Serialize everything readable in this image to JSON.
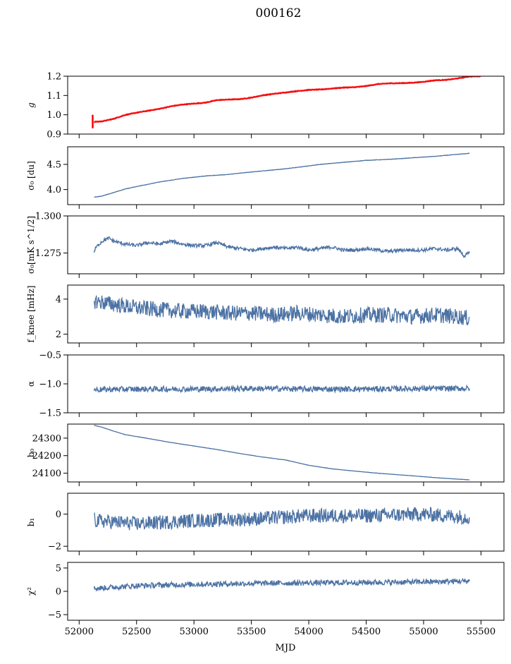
{
  "figure": {
    "title": "000162",
    "xlabel": "MJD"
  },
  "colors": {
    "line": "#4c72a4",
    "fit": "#ff0000",
    "axes": "#000000"
  },
  "chart_data": [
    {
      "type": "line",
      "ylabel": "g",
      "ylabel_italic": true,
      "xlim": [
        51900,
        55700
      ],
      "ylim": [
        0.9,
        1.2
      ],
      "yticks": [
        0.9,
        1.0,
        1.1,
        1.2
      ],
      "ytick_labels": [
        "0.9",
        "1.0",
        "1.1",
        "1.2"
      ],
      "series": [
        {
          "x": [
            52130,
            52200,
            52300,
            52400,
            52500,
            52600,
            52700,
            52800,
            52900,
            53000,
            53100,
            53200,
            53300,
            53400,
            53500,
            53600,
            53700,
            53800,
            53900,
            54000,
            54100,
            54200,
            54300,
            54400,
            54500,
            54600,
            54700,
            54800,
            54900,
            55000,
            55100,
            55200,
            55300,
            55400
          ],
          "y": [
            0.965,
            0.965,
            0.978,
            0.998,
            1.01,
            1.02,
            1.03,
            1.043,
            1.052,
            1.057,
            1.062,
            1.075,
            1.078,
            1.08,
            1.088,
            1.1,
            1.108,
            1.115,
            1.122,
            1.128,
            1.13,
            1.135,
            1.14,
            1.142,
            1.148,
            1.158,
            1.162,
            1.163,
            1.165,
            1.17,
            1.178,
            1.18,
            1.188,
            1.198
          ]
        },
        {
          "x": [
            52130,
            52200,
            52300,
            52400,
            52500,
            52600,
            52700,
            52800,
            52900,
            53000,
            53100,
            53200,
            53300,
            53400,
            53500,
            53600,
            53700,
            53800,
            53900,
            54000,
            54100,
            54200,
            54300,
            54400,
            54500,
            54600,
            54700,
            54800,
            54900,
            55000,
            55100,
            55200,
            55300,
            55400,
            55500
          ],
          "y": [
            0.963,
            0.966,
            0.979,
            0.999,
            1.011,
            1.021,
            1.031,
            1.044,
            1.053,
            1.058,
            1.063,
            1.076,
            1.079,
            1.081,
            1.089,
            1.101,
            1.109,
            1.116,
            1.123,
            1.129,
            1.131,
            1.136,
            1.141,
            1.143,
            1.149,
            1.159,
            1.163,
            1.164,
            1.166,
            1.171,
            1.179,
            1.181,
            1.189,
            1.199,
            1.2
          ],
          "error_at_start": [
            0.93,
            1.0
          ]
        }
      ]
    },
    {
      "type": "line",
      "ylabel": "σ₀ [du]",
      "xlim": [
        51900,
        55700
      ],
      "ylim": [
        3.7,
        4.85
      ],
      "yticks": [
        4.0,
        4.5
      ],
      "ytick_labels": [
        "4.0",
        "4.5"
      ],
      "series": [
        {
          "x": [
            52130,
            52200,
            52300,
            52400,
            52500,
            52700,
            52900,
            53100,
            53300,
            53500,
            53700,
            53900,
            54100,
            54300,
            54500,
            54700,
            54900,
            55100,
            55300,
            55400
          ],
          "y": [
            3.85,
            3.87,
            3.94,
            4.01,
            4.06,
            4.15,
            4.22,
            4.27,
            4.3,
            4.35,
            4.39,
            4.44,
            4.5,
            4.54,
            4.58,
            4.6,
            4.63,
            4.66,
            4.7,
            4.72
          ]
        }
      ]
    },
    {
      "type": "line",
      "ylabel": "σ₀[mK s^1/2]",
      "xlim": [
        51900,
        55700
      ],
      "ylim": [
        1.261,
        1.3
      ],
      "yticks": [
        1.275,
        1.3
      ],
      "ytick_labels": [
        "1.275",
        "1.300"
      ],
      "series": [
        {
          "x": [
            52130,
            52150,
            52200,
            52260,
            52300,
            52400,
            52500,
            52600,
            52700,
            52800,
            52900,
            53000,
            53100,
            53200,
            53300,
            53400,
            53500,
            53600,
            53700,
            53800,
            53900,
            54000,
            54100,
            54200,
            54300,
            54400,
            54500,
            54600,
            54700,
            54800,
            54900,
            55000,
            55100,
            55200,
            55300,
            55350,
            55400
          ],
          "y": [
            1.276,
            1.279,
            1.283,
            1.285,
            1.283,
            1.281,
            1.28,
            1.282,
            1.281,
            1.283,
            1.281,
            1.28,
            1.28,
            1.282,
            1.279,
            1.278,
            1.277,
            1.278,
            1.279,
            1.278,
            1.279,
            1.277,
            1.278,
            1.279,
            1.277,
            1.277,
            1.278,
            1.277,
            1.276,
            1.277,
            1.277,
            1.277,
            1.278,
            1.277,
            1.278,
            1.273,
            1.275
          ]
        }
      ]
    },
    {
      "type": "line",
      "ylabel": "f_knee [mHz]",
      "xlim": [
        51900,
        55700
      ],
      "ylim": [
        1.5,
        4.8
      ],
      "yticks": [
        2,
        4
      ],
      "ytick_labels": [
        "2",
        "4"
      ],
      "series": [
        {
          "x": [
            52130,
            52300,
            52500,
            52700,
            52900,
            53100,
            53300,
            53500,
            53700,
            53900,
            54100,
            54300,
            54500,
            54700,
            54900,
            55100,
            55300,
            55400
          ],
          "y": [
            3.9,
            3.7,
            3.5,
            3.4,
            3.3,
            3.3,
            3.2,
            3.2,
            3.1,
            3.2,
            3.1,
            3.0,
            3.1,
            3.1,
            3.0,
            3.1,
            3.0,
            2.9
          ]
        }
      ]
    },
    {
      "type": "line",
      "ylabel": "α",
      "xlim": [
        51900,
        55700
      ],
      "ylim": [
        -1.5,
        -0.5
      ],
      "yticks": [
        -1.5,
        -1.0,
        -0.5
      ],
      "ytick_labels": [
        "−1.5",
        "−1.0",
        "−0.5"
      ],
      "series": [
        {
          "x": [
            52130,
            52500,
            53000,
            53500,
            54000,
            54500,
            55000,
            55400
          ],
          "y": [
            -1.1,
            -1.09,
            -1.09,
            -1.08,
            -1.09,
            -1.09,
            -1.08,
            -1.08
          ]
        }
      ]
    },
    {
      "type": "line",
      "ylabel": "b₀",
      "xlim": [
        51900,
        55700
      ],
      "ylim": [
        24050,
        24380
      ],
      "yticks": [
        24100,
        24200,
        24300
      ],
      "ytick_labels": [
        "24100",
        "24200",
        "24300"
      ],
      "series": [
        {
          "x": [
            52130,
            52200,
            52300,
            52400,
            52600,
            52800,
            53000,
            53200,
            53400,
            53600,
            53800,
            54000,
            54200,
            54400,
            54600,
            54800,
            55000,
            55200,
            55400
          ],
          "y": [
            24373,
            24362,
            24340,
            24320,
            24298,
            24275,
            24255,
            24235,
            24212,
            24192,
            24175,
            24145,
            24125,
            24112,
            24100,
            24090,
            24080,
            24070,
            24062
          ]
        }
      ]
    },
    {
      "type": "line",
      "ylabel": "b₁",
      "xlim": [
        51900,
        55700
      ],
      "ylim": [
        -2.3,
        1.3
      ],
      "yticks": [
        -2,
        0
      ],
      "ytick_labels": [
        "−2",
        "0"
      ],
      "series": [
        {
          "x": [
            52130,
            52500,
            53000,
            53500,
            54000,
            54500,
            55000,
            55400
          ],
          "y": [
            -0.4,
            -0.6,
            -0.4,
            -0.3,
            -0.1,
            -0.1,
            0.0,
            -0.2
          ]
        }
      ]
    },
    {
      "type": "line",
      "ylabel": "χ²",
      "xlim": [
        51900,
        55700
      ],
      "ylim": [
        -6.2,
        6.2
      ],
      "yticks": [
        -5,
        0,
        5
      ],
      "ytick_labels": [
        "−5",
        "0",
        "5"
      ],
      "xticks": [
        52000,
        52500,
        53000,
        53500,
        54000,
        54500,
        55000,
        55500
      ],
      "xtick_labels": [
        "52000",
        "52500",
        "53000",
        "53500",
        "54000",
        "54500",
        "55000",
        "55500"
      ],
      "series": [
        {
          "x": [
            52130,
            52500,
            53000,
            53500,
            54000,
            54500,
            55000,
            55400
          ],
          "y": [
            0.6,
            1.2,
            1.5,
            1.7,
            1.8,
            1.9,
            2.0,
            2.2
          ]
        }
      ]
    }
  ]
}
